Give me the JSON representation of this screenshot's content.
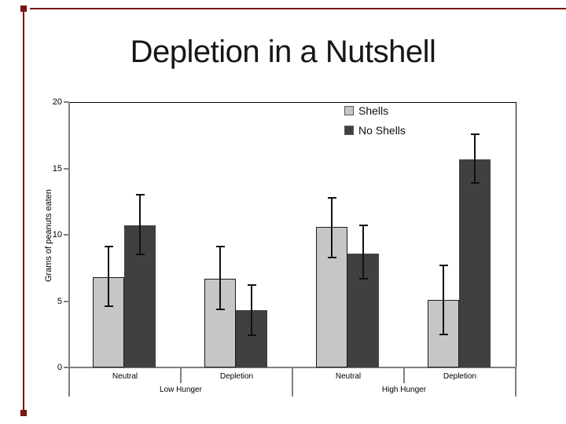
{
  "slide": {
    "title": "Depletion in a Nutshell",
    "accent_color": "#7b1512"
  },
  "chart_data": {
    "type": "bar",
    "title": "Depletion in a Nutshell",
    "ylabel": "Grams of peanuts eaten",
    "xlabel": "",
    "ylim": [
      0,
      20
    ],
    "yticks": [
      0,
      5,
      10,
      15,
      20
    ],
    "grid": "off",
    "legend_position": "top-right-inside",
    "group_labels": [
      "Low Hunger",
      "High Hunger"
    ],
    "categories": [
      "Neutral",
      "Depletion",
      "Neutral",
      "Depletion"
    ],
    "series": [
      {
        "name": "Shells",
        "color": "#c6c6c6",
        "border_color": "#1a1a1a",
        "values": [
          6.8,
          6.7,
          10.6,
          5.1
        ],
        "error_high": [
          9.1,
          9.1,
          12.8,
          7.7
        ],
        "error_low": [
          4.6,
          4.4,
          8.3,
          2.5
        ]
      },
      {
        "name": "No Shells",
        "color": "#404040",
        "border_color": "#404040",
        "values": [
          10.7,
          4.3,
          8.6,
          15.7
        ],
        "error_high": [
          13.0,
          6.2,
          10.7,
          17.6
        ],
        "error_low": [
          8.5,
          2.4,
          6.7,
          13.9
        ]
      }
    ]
  }
}
